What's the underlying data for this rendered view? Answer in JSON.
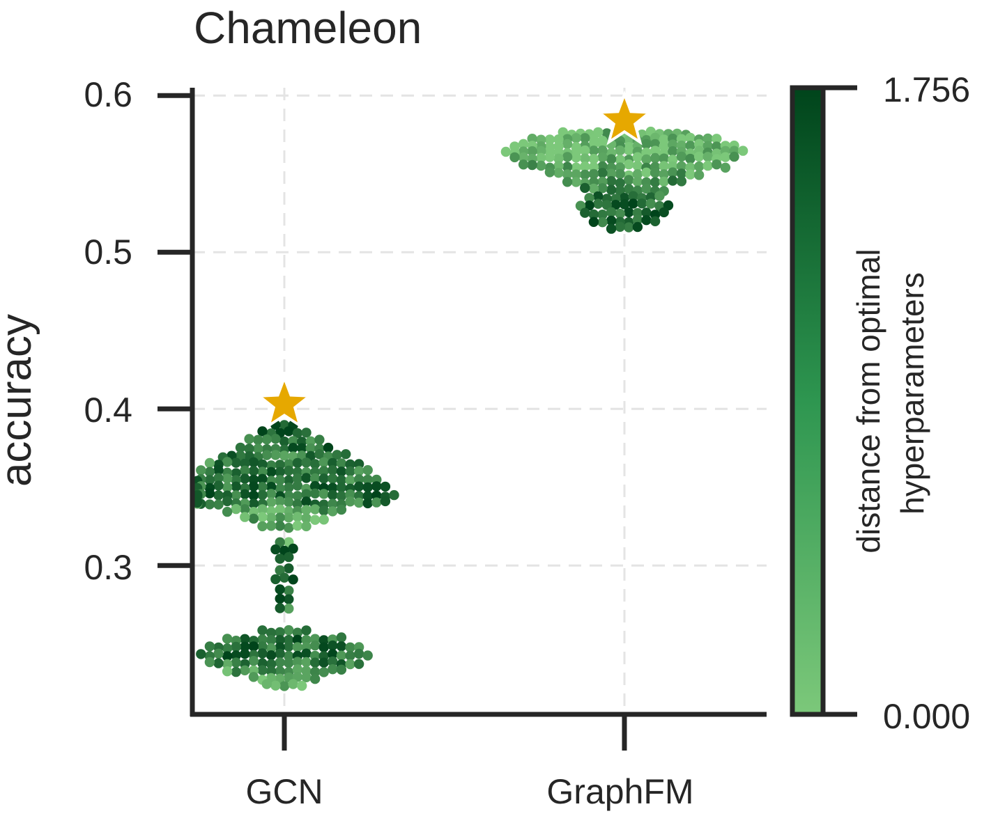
{
  "chart_data": {
    "type": "swarm",
    "title": "Chameleon",
    "ylabel": "accuracy",
    "xlabel": "",
    "categories": [
      "GCN",
      "GraphFM"
    ],
    "ylim": [
      0.205,
      0.605
    ],
    "yticks": [
      0.3,
      0.4,
      0.5,
      0.6
    ],
    "ytick_labels": [
      "0.3",
      "0.4",
      "0.5",
      "0.6"
    ],
    "grid": true,
    "colorbar": {
      "label_line1": "distance from optimal",
      "label_line2": "hyperparameters",
      "min_label": "0.000",
      "max_label": "1.756",
      "color_low": "#7cc87a",
      "color_high": "#00441b"
    },
    "best": [
      {
        "category": "GCN",
        "accuracy": 0.403,
        "marker": "star",
        "color": "#e6a800"
      },
      {
        "category": "GraphFM",
        "accuracy": 0.584,
        "marker": "star",
        "color": "#e6a800"
      }
    ],
    "series": [
      {
        "name": "GCN",
        "clusters": [
          {
            "levels": [
              [
                0.39,
                3,
                0.85
              ],
              [
                0.385,
                6,
                0.85
              ],
              [
                0.38,
                9,
                0.55
              ],
              [
                0.375,
                11,
                0.7
              ],
              [
                0.37,
                15,
                0.6
              ],
              [
                0.365,
                18,
                0.55
              ],
              [
                0.36,
                20,
                0.65
              ],
              [
                0.355,
                22,
                0.6
              ],
              [
                0.35,
                24,
                0.65
              ],
              [
                0.345,
                26,
                0.7
              ],
              [
                0.34,
                24,
                0.6
              ],
              [
                0.335,
                14,
                0.35
              ],
              [
                0.33,
                10,
                0.25
              ],
              [
                0.325,
                6,
                0.2
              ]
            ]
          },
          {
            "levels": [
              [
                0.315,
                2,
                0.3
              ],
              [
                0.31,
                3,
                0.95
              ],
              [
                0.305,
                2,
                0.8
              ],
              [
                0.298,
                2,
                0.6
              ],
              [
                0.292,
                3,
                0.75
              ],
              [
                0.285,
                2,
                0.8
              ],
              [
                0.278,
                2,
                0.9
              ],
              [
                0.272,
                2,
                0.6
              ]
            ]
          },
          {
            "levels": [
              [
                0.258,
                6,
                0.75
              ],
              [
                0.253,
                14,
                0.7
              ],
              [
                0.248,
                18,
                0.7
              ],
              [
                0.243,
                20,
                0.7
              ],
              [
                0.238,
                18,
                0.55
              ],
              [
                0.233,
                14,
                0.35
              ],
              [
                0.228,
                8,
                0.25
              ],
              [
                0.224,
                5,
                0.2
              ]
            ]
          }
        ]
      },
      {
        "name": "GraphFM",
        "clusters": [
          {
            "levels": [
              [
                0.576,
                15,
                0.15
              ],
              [
                0.572,
                22,
                0.15
              ],
              [
                0.568,
                26,
                0.12
              ],
              [
                0.564,
                28,
                0.12
              ],
              [
                0.56,
                26,
                0.15
              ],
              [
                0.555,
                24,
                0.2
              ],
              [
                0.55,
                18,
                0.3
              ],
              [
                0.545,
                14,
                0.4
              ],
              [
                0.54,
                10,
                0.55
              ],
              [
                0.535,
                9,
                0.65
              ],
              [
                0.53,
                11,
                0.7
              ],
              [
                0.525,
                10,
                0.75
              ],
              [
                0.52,
                8,
                0.8
              ],
              [
                0.516,
                4,
                0.85
              ]
            ]
          }
        ]
      }
    ]
  }
}
